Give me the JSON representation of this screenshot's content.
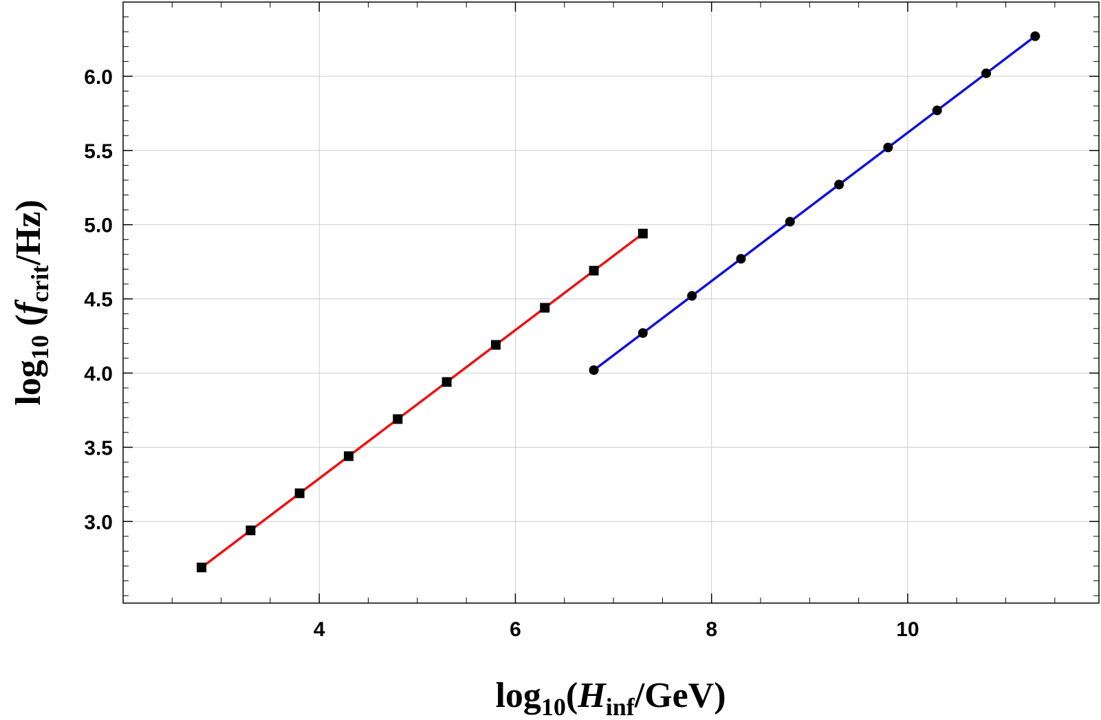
{
  "chart_data": {
    "type": "scatter",
    "xlabel": {
      "prefix": "log",
      "prefix_sub": "10",
      "open": "(",
      "var": "H",
      "var_sub": "inf",
      "rest": "/GeV)"
    },
    "ylabel": {
      "prefix": "log",
      "prefix_sub": "10",
      "open": " (",
      "var": "f",
      "var_sub": "crit",
      "rest": "/Hz)"
    },
    "xlim": [
      2.0,
      11.95
    ],
    "ylim": [
      2.45,
      6.5
    ],
    "xticks": [
      4,
      6,
      8,
      10
    ],
    "xtick_labels": [
      "4",
      "6",
      "8",
      "10"
    ],
    "xminor_step": 0.5,
    "yticks": [
      3.0,
      3.5,
      4.0,
      4.5,
      5.0,
      5.5,
      6.0
    ],
    "ytick_labels": [
      "3.0",
      "3.5",
      "4.0",
      "4.5",
      "5.0",
      "5.5",
      "6.0"
    ],
    "yminor_step": 0.1,
    "grid": true,
    "legend": "none",
    "series": [
      {
        "marker": "square",
        "line_color": "#ee1111",
        "marker_color": "#000000",
        "x": [
          2.8,
          3.3,
          3.8,
          4.3,
          4.8,
          5.3,
          5.8,
          6.3,
          6.8,
          7.3
        ],
        "y": [
          2.69,
          2.94,
          3.19,
          3.44,
          3.69,
          3.94,
          4.19,
          4.44,
          4.69,
          4.94
        ]
      },
      {
        "marker": "circle",
        "line_color": "#1111dd",
        "marker_color": "#000000",
        "x": [
          6.8,
          7.3,
          7.8,
          8.3,
          8.8,
          9.3,
          9.8,
          10.3,
          10.8,
          11.3
        ],
        "y": [
          4.02,
          4.27,
          4.52,
          4.77,
          5.02,
          5.27,
          5.52,
          5.77,
          6.02,
          6.27
        ]
      }
    ]
  }
}
